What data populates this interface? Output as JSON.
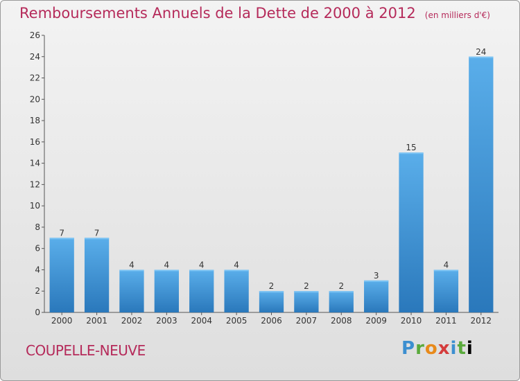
{
  "chart_data": {
    "type": "bar",
    "title": "Remboursements Annuels de la Dette de 2000 à 2012",
    "subtitle": "(en milliers d'€)",
    "categories": [
      "2000",
      "2001",
      "2002",
      "2003",
      "2004",
      "2005",
      "2006",
      "2007",
      "2008",
      "2009",
      "2010",
      "2011",
      "2012"
    ],
    "values": [
      7,
      7,
      4,
      4,
      4,
      4,
      2,
      2,
      2,
      3,
      15,
      4,
      24
    ],
    "ylim": [
      0,
      26
    ],
    "yticks": [
      0,
      2,
      4,
      6,
      8,
      10,
      12,
      14,
      16,
      18,
      20,
      22,
      24,
      26
    ],
    "grid": false,
    "bar_color": "#3f95d8"
  },
  "footer": {
    "city": "COUPELLE-NEUVE",
    "logo": "Proxiti"
  }
}
